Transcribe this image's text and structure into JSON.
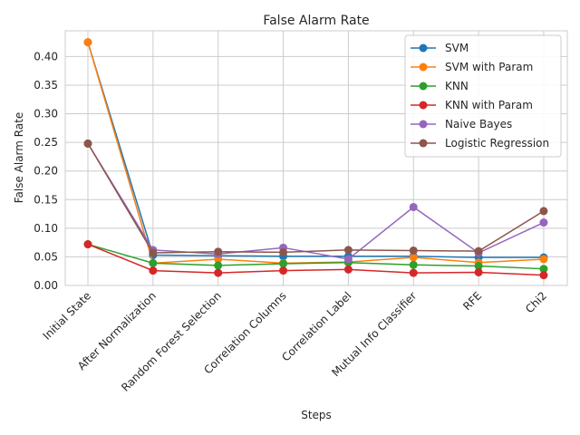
{
  "chart_data": {
    "type": "line",
    "title": "False Alarm Rate",
    "xlabel": "Steps",
    "ylabel": "False Alarm Rate",
    "categories": [
      "Initial State",
      "After Normalization",
      "Random Forest Selection",
      "Correlation Columns",
      "Correlation Label",
      "Mutual Info Classifier",
      "RFE",
      "Chi2"
    ],
    "ylim": [
      0,
      0.445
    ],
    "yticks": [
      "0.00",
      "0.05",
      "0.10",
      "0.15",
      "0.20",
      "0.25",
      "0.30",
      "0.35",
      "0.40"
    ],
    "grid": true,
    "legend_position": "top-right",
    "series": [
      {
        "name": "SVM",
        "color": "#1f77b4",
        "values": [
          0.425,
          0.053,
          0.052,
          0.051,
          0.051,
          0.051,
          0.049,
          0.049
        ]
      },
      {
        "name": "SVM with Param",
        "color": "#ff7f0e",
        "values": [
          0.425,
          0.039,
          0.046,
          0.039,
          0.041,
          0.049,
          0.04,
          0.046
        ]
      },
      {
        "name": "KNN",
        "color": "#2ca02c",
        "values": [
          0.072,
          0.039,
          0.035,
          0.038,
          0.04,
          0.036,
          0.034,
          0.029
        ]
      },
      {
        "name": "KNN with Param",
        "color": "#d62728",
        "values": [
          0.072,
          0.026,
          0.022,
          0.026,
          0.028,
          0.022,
          0.023,
          0.018
        ]
      },
      {
        "name": "Naive Bayes",
        "color": "#9467bd",
        "values": [
          0.248,
          0.062,
          0.055,
          0.066,
          0.046,
          0.137,
          0.057,
          0.11
        ]
      },
      {
        "name": "Logistic Regression",
        "color": "#8c564b",
        "values": [
          0.248,
          0.057,
          0.059,
          0.058,
          0.062,
          0.061,
          0.06,
          0.13
        ]
      }
    ]
  }
}
